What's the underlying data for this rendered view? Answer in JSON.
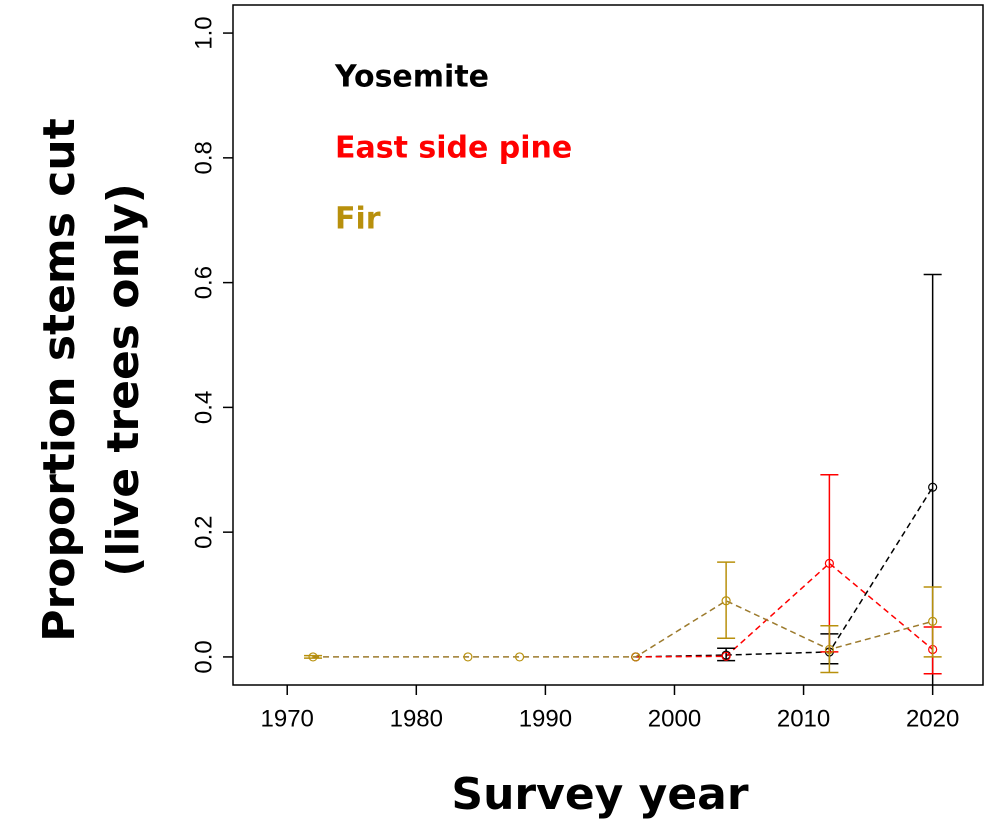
{
  "chart_data": {
    "type": "line",
    "ylabel": [
      "Proportion stems cut",
      "(live trees only)"
    ],
    "xlabel": "Survey year",
    "xlim": [
      1965.8,
      2023.9
    ],
    "ylim": [
      -0.045,
      1.045
    ],
    "xticks": [
      1970,
      1980,
      1990,
      2000,
      2010,
      2020
    ],
    "yticks": [
      {
        "value": 0,
        "label": "0.0"
      },
      {
        "value": 0.2,
        "label": "0.2"
      },
      {
        "value": 0.4,
        "label": "0.4"
      },
      {
        "value": 0.6,
        "label": "0.6"
      },
      {
        "value": 0.8,
        "label": "0.8"
      },
      {
        "value": 1,
        "label": "1.0"
      }
    ],
    "series": [
      {
        "name": "Yosemite",
        "color": "#000000",
        "line_color": "#000000",
        "x": [
          1997,
          2004,
          2012,
          2020
        ],
        "values": [
          0,
          0.003,
          0.008,
          0.272
        ],
        "lower": [
          null,
          -0.006,
          -0.011,
          -0.07
        ],
        "upper": [
          null,
          0.014,
          0.037,
          0.613
        ]
      },
      {
        "name": "East side pine",
        "color": "#ff0000",
        "line_color": "#ff0000",
        "x": [
          1997,
          2004,
          2012,
          2020
        ],
        "values": [
          0,
          0.001,
          0.15,
          0.012
        ],
        "lower": [
          null,
          null,
          0.008,
          -0.027
        ],
        "upper": [
          null,
          null,
          0.292,
          0.048
        ]
      },
      {
        "name": "Fir",
        "color": "#b8900c",
        "line_color": "#9c7a2c",
        "x": [
          1972,
          1984,
          1988,
          1997,
          2004,
          2012,
          2020
        ],
        "values": [
          0,
          0,
          0,
          0,
          0.09,
          0.012,
          0.057
        ],
        "lower": [
          -0.002,
          null,
          null,
          null,
          0.03,
          -0.025,
          0
        ],
        "upper": [
          0.002,
          null,
          null,
          null,
          0.152,
          0.05,
          0.112
        ]
      }
    ]
  }
}
